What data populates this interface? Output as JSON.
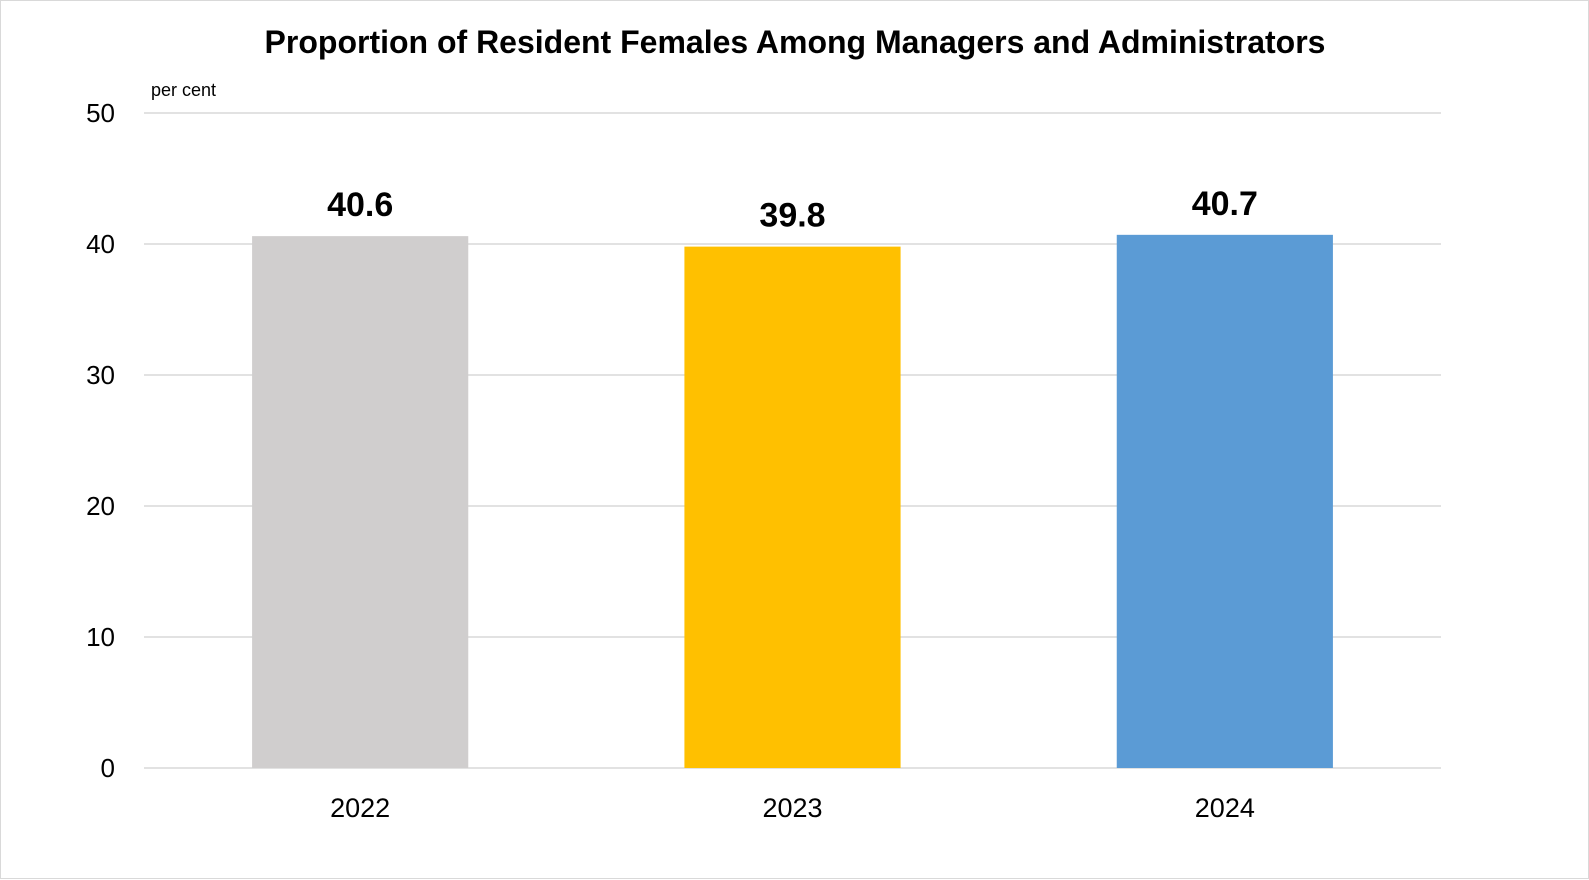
{
  "chart_data": {
    "type": "bar",
    "title": "Proportion of Resident Females Among Managers and Administrators",
    "ylabel": "per cent",
    "xlabel": "",
    "categories": [
      "2022",
      "2023",
      "2024"
    ],
    "values": [
      40.6,
      39.8,
      40.7
    ],
    "data_labels": [
      "40.6",
      "39.8",
      "40.7"
    ],
    "colors": [
      "#d0cece",
      "#ffc000",
      "#5b9bd5"
    ],
    "ylim": [
      0,
      50
    ],
    "yticks": [
      0,
      10,
      20,
      30,
      40,
      50
    ],
    "ytick_labels": [
      "0",
      "10",
      "20",
      "30",
      "40",
      "50"
    ],
    "grid": true,
    "legend": "none"
  }
}
